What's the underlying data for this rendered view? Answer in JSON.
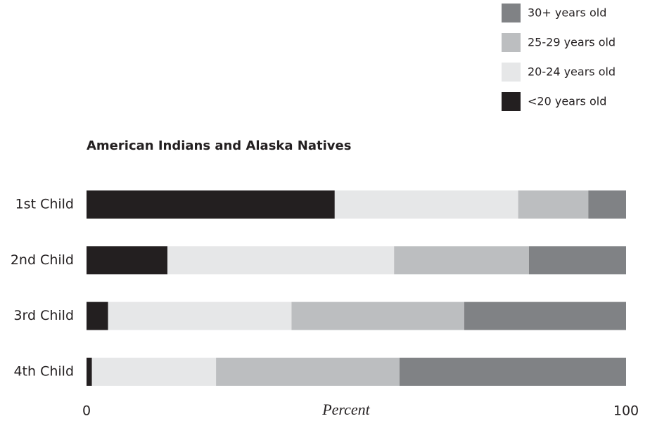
{
  "chart_data": {
    "type": "stacked-bar-horizontal",
    "title": "American Indians and Alaska Natives",
    "x_label": "Percent",
    "categories": [
      "1st Child",
      "2nd Child",
      "3rd Child",
      "4th Child"
    ],
    "series": [
      {
        "name": "<20 years old",
        "color": "#231f20",
        "values": [
          46,
          15,
          4,
          1
        ]
      },
      {
        "name": "20-24 years old",
        "color": "#e6e7e8",
        "values": [
          34,
          42,
          34,
          23
        ]
      },
      {
        "name": "25-29 years old",
        "color": "#bcbec0",
        "values": [
          13,
          25,
          32,
          34
        ]
      },
      {
        "name": "30+ years old",
        "color": "#808285",
        "values": [
          7,
          18,
          30,
          42
        ]
      }
    ],
    "xlim": [
      0,
      100
    ],
    "xticks": [
      0,
      100
    ],
    "legend": "top-right"
  }
}
